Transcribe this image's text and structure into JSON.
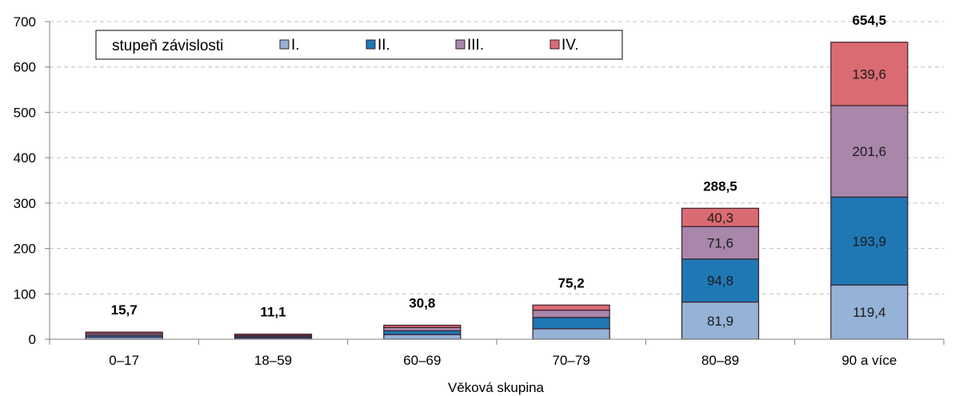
{
  "chart_data": {
    "type": "bar",
    "stacked": true,
    "xlabel": "Věková skupina",
    "ylabel": "",
    "ylim": [
      0,
      700
    ],
    "yticks": [
      0,
      100,
      200,
      300,
      400,
      500,
      600,
      700
    ],
    "grid": true,
    "categories": [
      "0–17",
      "18–59",
      "60–69",
      "70–79",
      "80–89",
      "90 a více"
    ],
    "totals": [
      "15,7",
      "11,1",
      "30,8",
      "75,2",
      "288,5",
      "654,5"
    ],
    "legend": {
      "title": "stupeň závislosti",
      "position": "top-left"
    },
    "series": [
      {
        "name": "I.",
        "color": "#95b3d7",
        "values": [
          4.5,
          2.8,
          10.2,
          23.0,
          81.9,
          119.4
        ],
        "labels": [
          "",
          "",
          "",
          "",
          "81,9",
          "119,4"
        ]
      },
      {
        "name": "II.",
        "color": "#1f78b4",
        "values": [
          4.2,
          3.0,
          8.4,
          25.0,
          94.8,
          193.9
        ],
        "labels": [
          "",
          "",
          "",
          "",
          "94,8",
          "193,9"
        ]
      },
      {
        "name": "III.",
        "color": "#a887ab",
        "values": [
          3.8,
          2.6,
          7.2,
          16.0,
          71.6,
          201.6
        ],
        "labels": [
          "",
          "",
          "",
          "",
          "71,6",
          "201,6"
        ]
      },
      {
        "name": "IV.",
        "color": "#db6b73",
        "values": [
          3.2,
          2.7,
          5.0,
          11.2,
          40.3,
          139.6
        ],
        "labels": [
          "",
          "",
          "",
          "",
          "40,3",
          "139,6"
        ]
      }
    ]
  }
}
